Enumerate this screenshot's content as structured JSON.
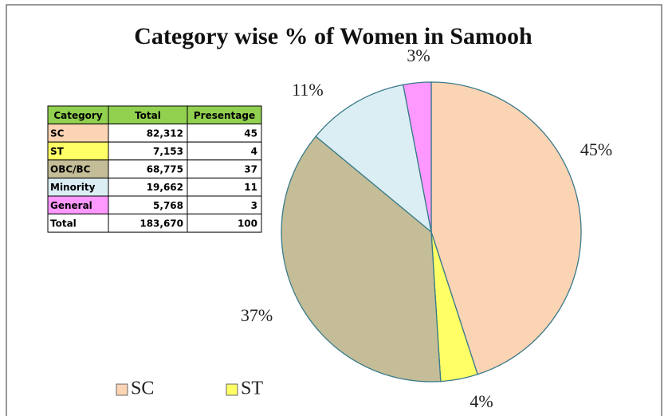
{
  "chart_data": {
    "type": "pie",
    "title": "Category wise % of Women in Samooh",
    "categories": [
      "SC",
      "ST",
      "OBC/BC",
      "Minority",
      "General"
    ],
    "values": [
      45,
      4,
      37,
      11,
      3
    ],
    "value_labels": [
      "45%",
      "4%",
      "37%",
      "11%",
      "3%"
    ],
    "colors": [
      "#fbd4b4",
      "#ffff66",
      "#c4bd97",
      "#dbeef3",
      "#ff99ff"
    ]
  },
  "table": {
    "header": [
      "Category",
      "Total",
      "Presentage"
    ],
    "rows": [
      [
        "SC",
        "82,312",
        "45"
      ],
      [
        "ST",
        "7,153",
        "4"
      ],
      [
        "OBC/BC",
        "68,775",
        "37"
      ],
      [
        "Minority",
        "19,662",
        "11"
      ],
      [
        "General",
        "5,768",
        "3"
      ],
      [
        "Total",
        "183,670",
        "100"
      ]
    ]
  }
}
